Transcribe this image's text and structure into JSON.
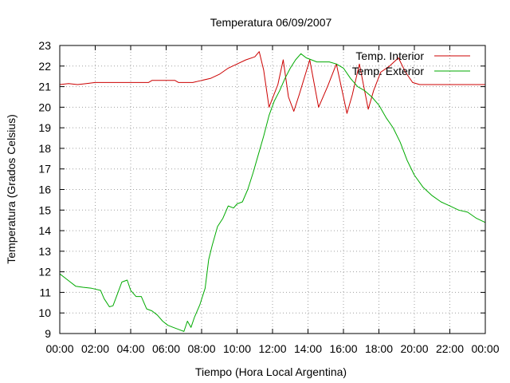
{
  "chart_data": {
    "type": "line",
    "title": "Temperatura 06/09/2007",
    "xlabel": "Tiempo (Hora Local Argentina)",
    "ylabel": "Temperatura (Grados Celsius)",
    "xlim": [
      0,
      24
    ],
    "ylim": [
      9,
      23
    ],
    "x_ticks": [
      0,
      2,
      4,
      6,
      8,
      10,
      12,
      14,
      16,
      18,
      20,
      22,
      24
    ],
    "x_tick_labels": [
      "00:00",
      "02:00",
      "04:00",
      "06:00",
      "08:00",
      "10:00",
      "12:00",
      "14:00",
      "16:00",
      "18:00",
      "20:00",
      "22:00",
      "00:00"
    ],
    "y_ticks": [
      9,
      10,
      11,
      12,
      13,
      14,
      15,
      16,
      17,
      18,
      19,
      20,
      21,
      22,
      23
    ],
    "y_tick_labels": [
      "9",
      "10",
      "11",
      "12",
      "13",
      "14",
      "15",
      "16",
      "17",
      "18",
      "19",
      "20",
      "21",
      "22",
      "23"
    ],
    "grid": true,
    "legend_position": "top-right",
    "series": [
      {
        "name": "Temp. Interior",
        "color": "#cc0000",
        "x": [
          0,
          0.5,
          1,
          1.5,
          2,
          3,
          4,
          5,
          5.2,
          6.5,
          6.7,
          7.5,
          8,
          8.5,
          9,
          9.5,
          10,
          10.5,
          11,
          11.25,
          11.5,
          11.8,
          12.3,
          12.6,
          12.9,
          13.2,
          13.5,
          14.1,
          14.6,
          15.1,
          15.6,
          16.0,
          16.2,
          16.5,
          16.9,
          17.4,
          17.7,
          18.1,
          18.6,
          19.1,
          19.5,
          19.9,
          20.3,
          21,
          22,
          23,
          24
        ],
        "values": [
          21.1,
          21.15,
          21.1,
          21.15,
          21.2,
          21.2,
          21.2,
          21.2,
          21.3,
          21.3,
          21.2,
          21.2,
          21.3,
          21.4,
          21.6,
          21.9,
          22.1,
          22.3,
          22.45,
          22.7,
          21.8,
          20.0,
          21.1,
          22.3,
          20.5,
          19.8,
          20.6,
          22.3,
          20.0,
          21.0,
          22.1,
          20.5,
          19.7,
          20.6,
          22.1,
          19.9,
          20.8,
          21.7,
          22.0,
          22.4,
          21.7,
          21.2,
          21.1,
          21.1,
          21.1,
          21.1,
          21.1
        ]
      },
      {
        "name": "Temp. Exterior",
        "color": "#00aa00",
        "x": [
          0,
          0.3,
          0.6,
          0.9,
          1.3,
          1.8,
          2.3,
          2.5,
          2.8,
          3.0,
          3.2,
          3.5,
          3.8,
          4.0,
          4.3,
          4.6,
          4.9,
          5.2,
          5.5,
          5.8,
          6.1,
          6.4,
          6.7,
          7.0,
          7.2,
          7.4,
          7.6,
          7.9,
          8.2,
          8.4,
          8.6,
          8.9,
          9.2,
          9.5,
          9.8,
          10.0,
          10.3,
          10.6,
          10.9,
          11.2,
          11.5,
          11.8,
          12.1,
          12.4,
          12.7,
          13.0,
          13.3,
          13.6,
          13.9,
          14.2,
          14.5,
          14.8,
          15.2,
          15.6,
          16.0,
          16.4,
          16.8,
          17.2,
          17.6,
          18.0,
          18.4,
          18.8,
          19.2,
          19.6,
          20.0,
          20.5,
          21.0,
          21.5,
          22.0,
          22.5,
          23.0,
          23.5,
          24.0
        ],
        "values": [
          11.9,
          11.7,
          11.5,
          11.3,
          11.25,
          11.2,
          11.1,
          10.7,
          10.3,
          10.35,
          10.8,
          11.5,
          11.6,
          11.1,
          10.8,
          10.8,
          10.2,
          10.1,
          9.9,
          9.6,
          9.4,
          9.3,
          9.2,
          9.1,
          9.6,
          9.3,
          9.8,
          10.4,
          11.2,
          12.6,
          13.3,
          14.2,
          14.6,
          15.2,
          15.1,
          15.3,
          15.4,
          16.0,
          16.8,
          17.7,
          18.6,
          19.6,
          20.3,
          20.8,
          21.4,
          21.9,
          22.3,
          22.6,
          22.4,
          22.3,
          22.2,
          22.2,
          22.2,
          22.1,
          21.9,
          21.4,
          21.0,
          20.8,
          20.5,
          20.1,
          19.5,
          19.0,
          18.3,
          17.4,
          16.7,
          16.1,
          15.7,
          15.4,
          15.2,
          15.0,
          14.9,
          14.6,
          14.4
        ]
      }
    ]
  }
}
